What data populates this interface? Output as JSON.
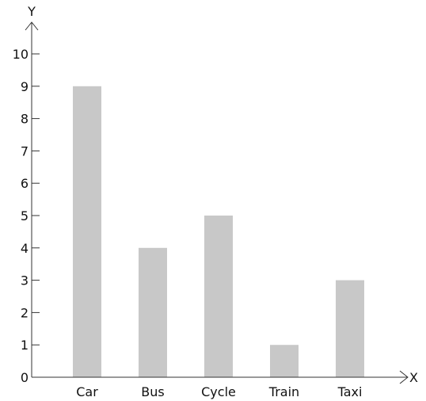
{
  "chart_data": {
    "type": "bar",
    "title": "",
    "xlabel": "X",
    "ylabel": "Y",
    "categories": [
      "Car",
      "Bus",
      "Cycle",
      "Train",
      "Taxi"
    ],
    "values": [
      9,
      4,
      5,
      1,
      3
    ],
    "ylim": [
      0,
      10
    ],
    "yticks": [
      0,
      1,
      2,
      3,
      4,
      5,
      6,
      7,
      8,
      9,
      10
    ],
    "grid": false,
    "bar_color": "#c8c8c8",
    "axis_color": "#333333"
  }
}
